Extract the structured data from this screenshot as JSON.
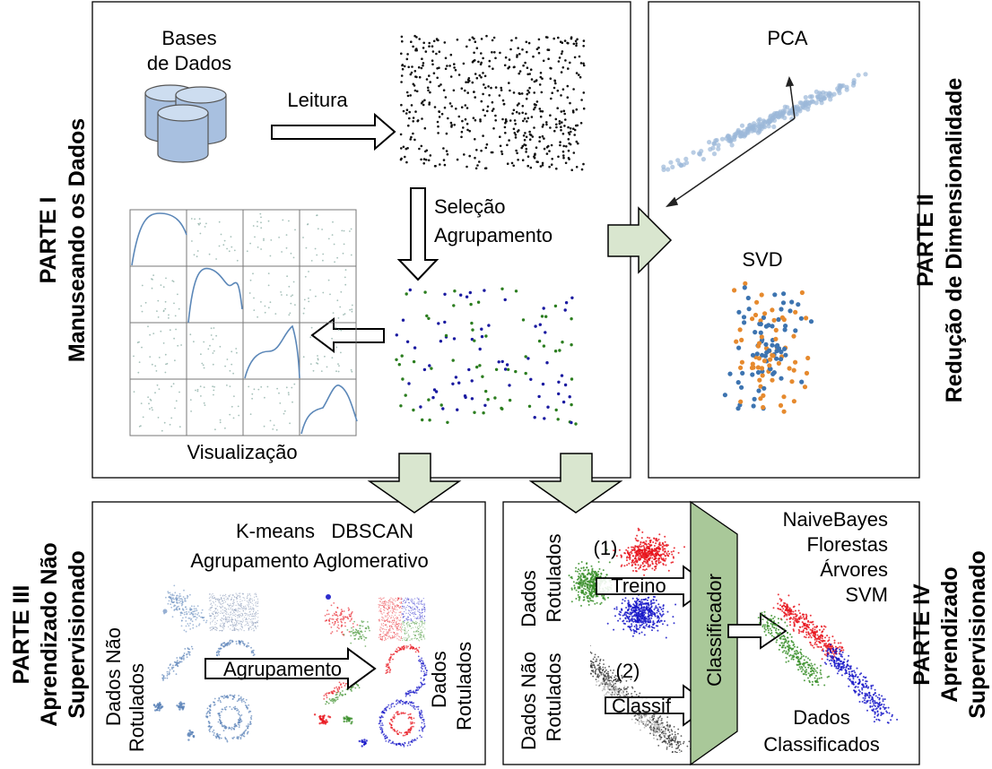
{
  "part1": {
    "title": "PARTE I",
    "subtitle": "Manuseando os Dados",
    "bases_line1": "Bases",
    "bases_line2": "de Dados",
    "leitura": "Leitura",
    "selecao": "Seleção",
    "agrupamento": "Agrupamento",
    "visualizacao": "Visualização"
  },
  "part2": {
    "title": "PARTE II",
    "subtitle": "Redução de Dimensionalidade",
    "pca": "PCA",
    "svd": "SVD"
  },
  "part3": {
    "title": "PARTE III",
    "subtitle_line1": "Aprendizado Não",
    "subtitle_line2": "Supervisionado",
    "methods_line1": "K-means   DBSCAN",
    "methods_line2": "Agrupamento Aglomerativo",
    "unlabeled_line1": "Dados Não",
    "unlabeled_line2": "Rotulados",
    "arrow_label": "Agrupamento",
    "labeled_line1": "Dados",
    "labeled_line2": "Rotulados"
  },
  "part4": {
    "title": "PARTE IV",
    "subtitle_line1": "Aprendizado",
    "subtitle_line2": "Supervisionado",
    "labeled_line1": "Dados",
    "labeled_line2": "Rotulados",
    "unlabeled_line1": "Dados Não",
    "unlabeled_line2": "Rotulados",
    "step1": "(1)",
    "treino": "Treino",
    "step2": "(2)",
    "classif": "Classif",
    "classificador": "Classificador",
    "alg1": "NaiveBayes",
    "alg2": "Florestas",
    "alg3": "Árvores",
    "alg4": "SVM",
    "result_line1": "Dados",
    "result_line2": "Classificados"
  },
  "colors": {
    "flow_arrow": "#d9e6cf",
    "classifier_fill": "#a9c899",
    "pca_points": "#9bb8d8",
    "orange": "#e68a2e",
    "blue": "#3d74b0",
    "red": "#e8141c",
    "green": "#3a8f2a",
    "dark_blue": "#1616c8"
  }
}
